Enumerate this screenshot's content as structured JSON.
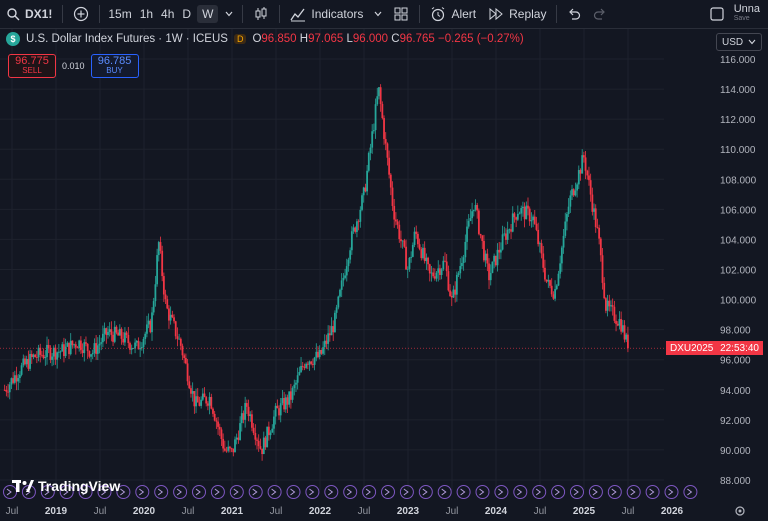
{
  "toolbar": {
    "symbol": "DX1!",
    "intervals": [
      "15m",
      "1h",
      "4h",
      "D",
      "W"
    ],
    "active_interval": "W",
    "indicators_label": "Indicators",
    "alert_label": "Alert",
    "replay_label": "Replay",
    "layout_name": "Unna",
    "save_label": "Save"
  },
  "legend": {
    "title": "U.S. Dollar Index Futures · 1W · ICEUS",
    "badge": "D",
    "open_key": "O",
    "open": "96.850",
    "high_key": "H",
    "high": "97.065",
    "low_key": "L",
    "low": "96.000",
    "close_key": "C",
    "close": "96.765",
    "change": "−0.265 (−0.27%)"
  },
  "trade": {
    "sell_price": "96.775",
    "sell_label": "SELL",
    "spread": "0.010",
    "buy_price": "96.785",
    "buy_label": "BUY"
  },
  "currency": "USD",
  "price_tag": {
    "symbol": "DXU2025",
    "countdown": "22:53:40"
  },
  "brand": "TradingView",
  "colors": {
    "up": "#26a69a",
    "down": "#f23645",
    "bg": "#131722",
    "grid": "#1e222d"
  },
  "chart_data": {
    "type": "candlestick",
    "y_ticks": [
      "116.000",
      "114.000",
      "112.000",
      "110.000",
      "108.000",
      "106.000",
      "104.000",
      "102.000",
      "100.000",
      "98.000",
      "96.000",
      "94.000",
      "92.000",
      "90.000",
      "88.000"
    ],
    "ylim": [
      88,
      116
    ],
    "x_ticks": [
      "Jul",
      "2019",
      "Jul",
      "2020",
      "Jul",
      "2021",
      "Jul",
      "2022",
      "Jul",
      "2023",
      "Jul",
      "2024",
      "Jul",
      "2025",
      "Jul",
      "2026"
    ],
    "last_price": 96.765,
    "path": [
      [
        "2018-06",
        94.0
      ],
      [
        "2018-08",
        95.3
      ],
      [
        "2018-10",
        96.2
      ],
      [
        "2018-12",
        96.5
      ],
      [
        "2019-02",
        96.6
      ],
      [
        "2019-04",
        97.2
      ],
      [
        "2019-06",
        96.5
      ],
      [
        "2019-08",
        97.8
      ],
      [
        "2019-10",
        97.5
      ],
      [
        "2019-12",
        96.8
      ],
      [
        "2020-02",
        98.4
      ],
      [
        "2020-03",
        103.8
      ],
      [
        "2020-04",
        99.5
      ],
      [
        "2020-06",
        97.0
      ],
      [
        "2020-08",
        93.0
      ],
      [
        "2020-10",
        93.5
      ],
      [
        "2020-12",
        90.0
      ],
      [
        "2021-01",
        89.8
      ],
      [
        "2021-03",
        93.0
      ],
      [
        "2021-05",
        90.0
      ],
      [
        "2021-07",
        92.5
      ],
      [
        "2021-09",
        93.5
      ],
      [
        "2021-11",
        96.0
      ],
      [
        "2022-01",
        96.2
      ],
      [
        "2022-03",
        98.5
      ],
      [
        "2022-05",
        103.5
      ],
      [
        "2022-07",
        107.0
      ],
      [
        "2022-09",
        114.0
      ],
      [
        "2022-11",
        106.0
      ],
      [
        "2023-01",
        102.0
      ],
      [
        "2023-02",
        104.5
      ],
      [
        "2023-04",
        101.5
      ],
      [
        "2023-06",
        102.5
      ],
      [
        "2023-07",
        99.8
      ],
      [
        "2023-10",
        106.5
      ],
      [
        "2023-12",
        101.5
      ],
      [
        "2024-02",
        104.0
      ],
      [
        "2024-04",
        106.0
      ],
      [
        "2024-06",
        105.5
      ],
      [
        "2024-08",
        101.0
      ],
      [
        "2024-09",
        100.5
      ],
      [
        "2024-11",
        106.5
      ],
      [
        "2025-01",
        109.5
      ],
      [
        "2025-03",
        104.0
      ],
      [
        "2025-04",
        99.5
      ],
      [
        "2025-06",
        98.5
      ],
      [
        "2025-07",
        96.8
      ]
    ]
  }
}
